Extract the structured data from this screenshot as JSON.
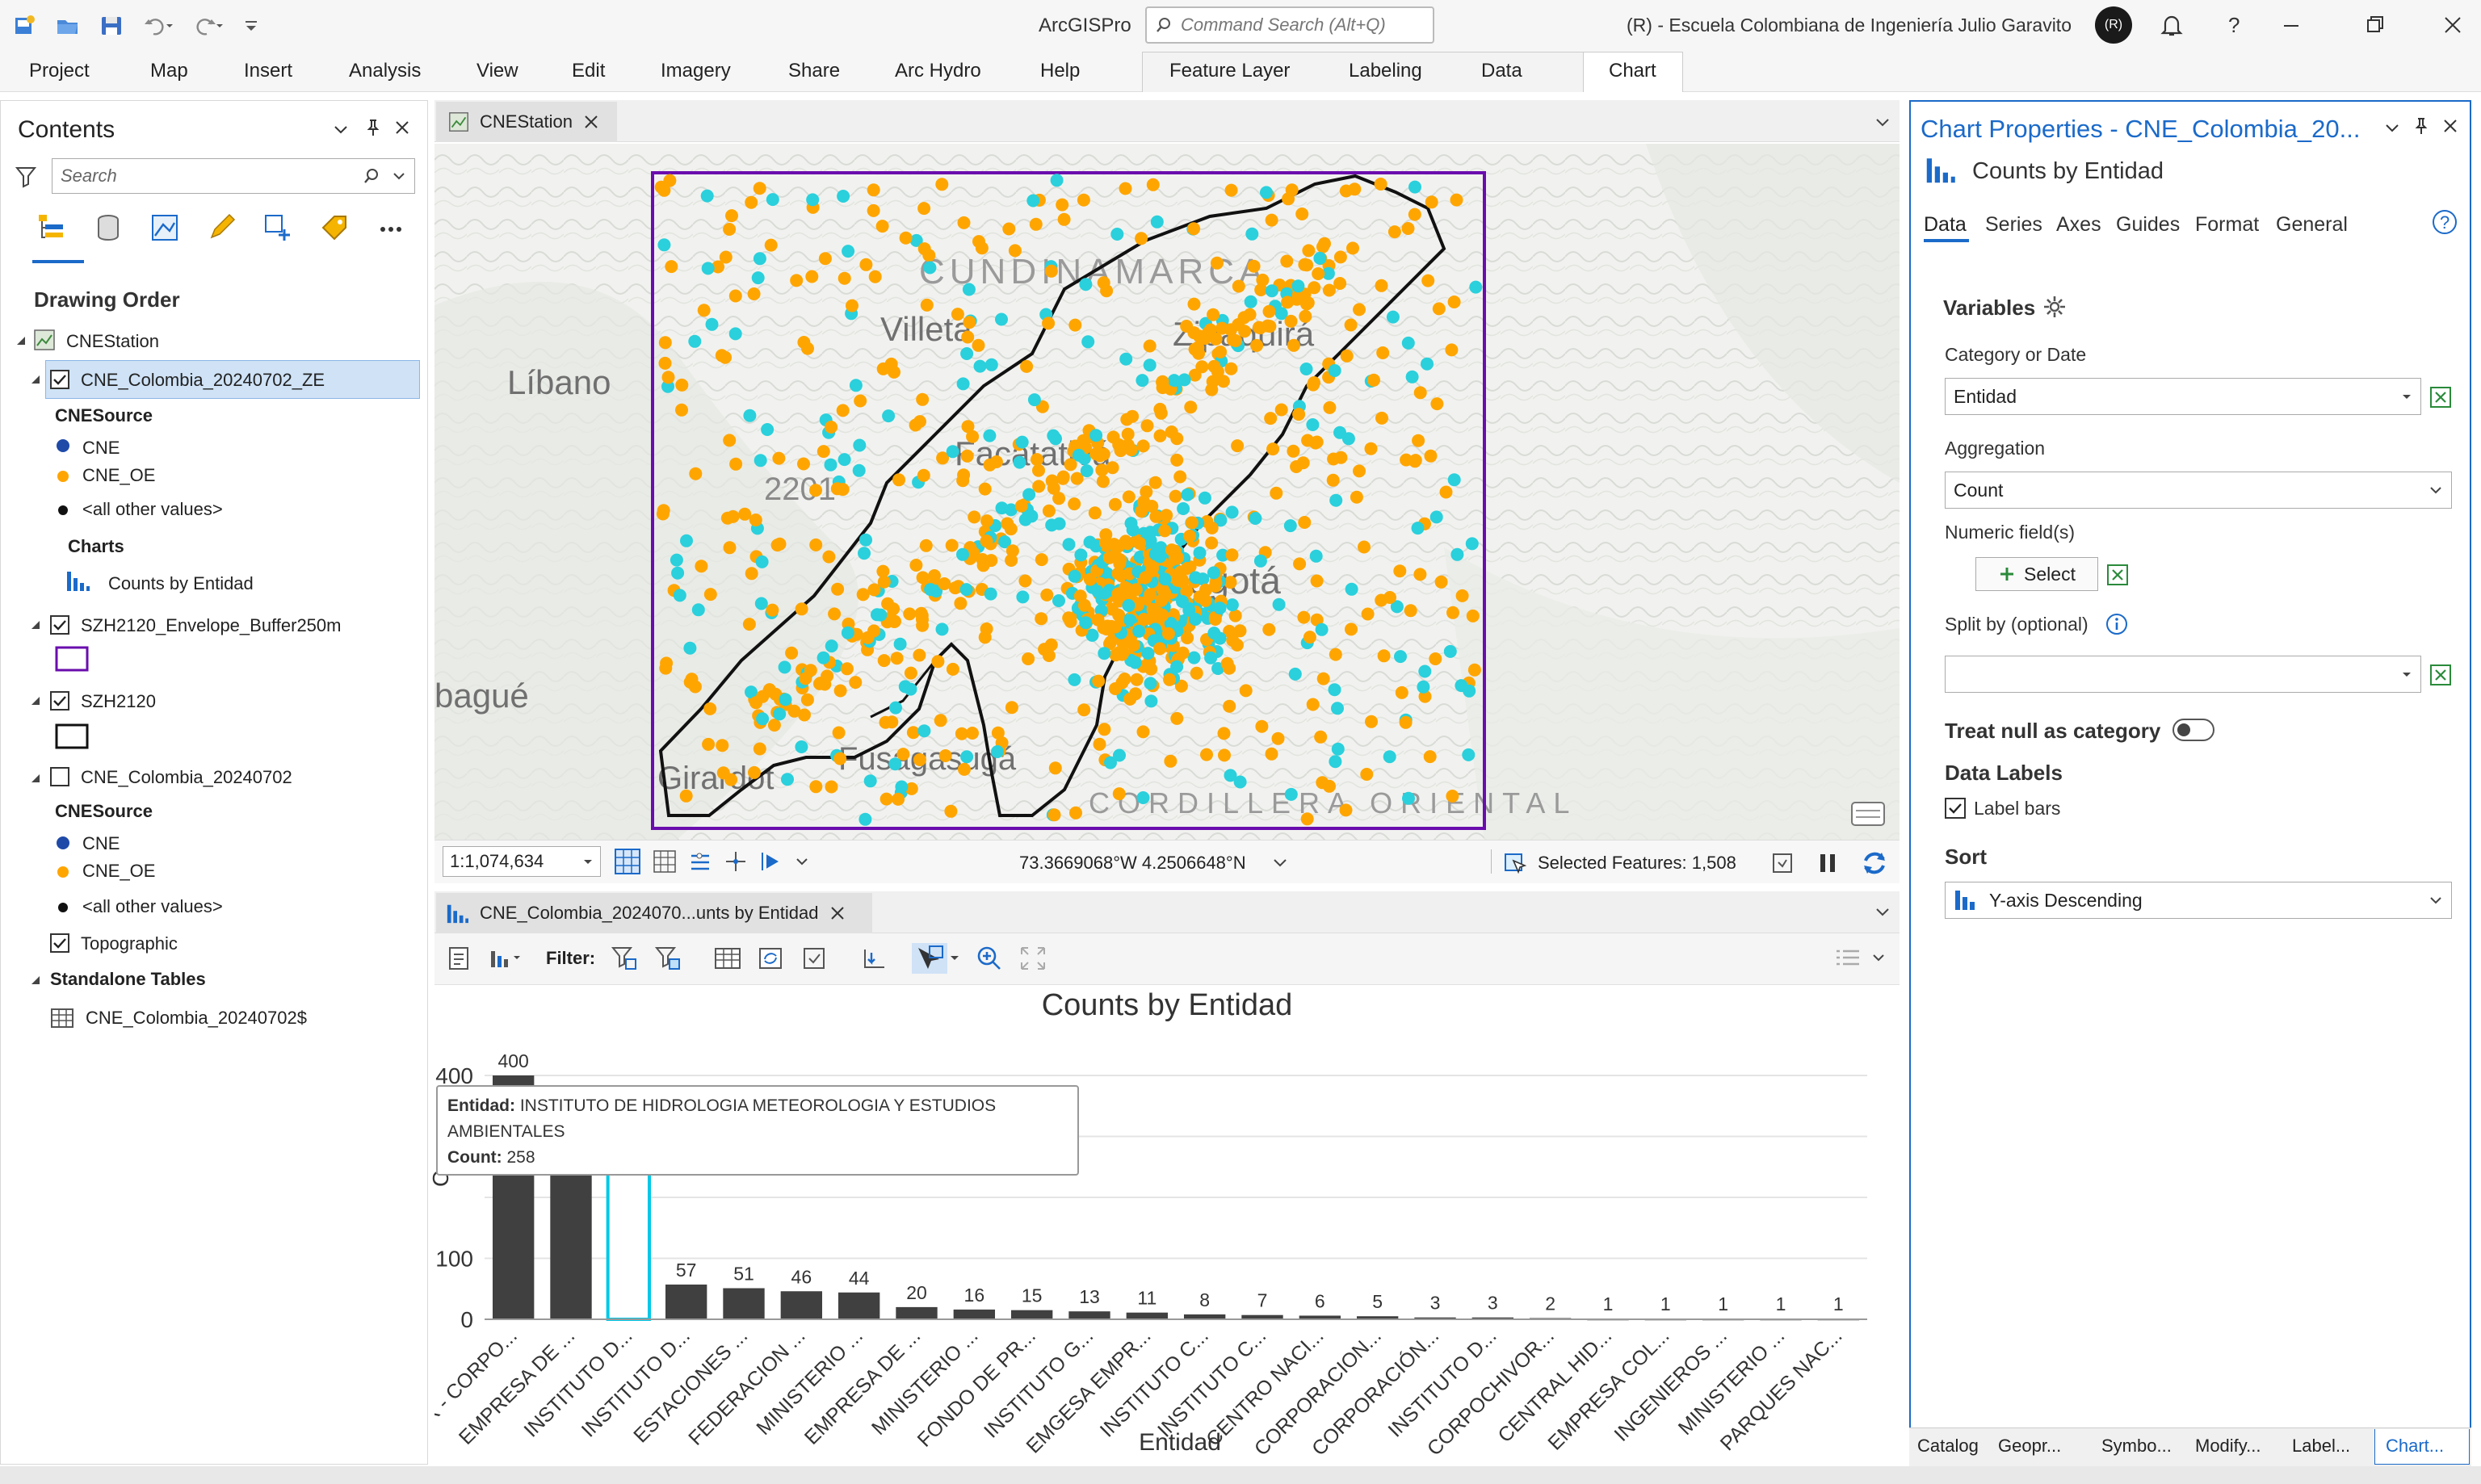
{
  "app": {
    "title": "ArcGISPro",
    "command_search_placeholder": "Command Search (Alt+Q)",
    "user_org": "(R) - Escuela Colombiana de Ingeniería Julio Garavito",
    "user_initials": "(R)"
  },
  "ribbon_tabs": [
    "Project",
    "Map",
    "Insert",
    "Analysis",
    "View",
    "Edit",
    "Imagery",
    "Share",
    "Arc Hydro",
    "Help"
  ],
  "context_tabs": [
    "Feature Layer",
    "Labeling",
    "Data"
  ],
  "chart_tab": "Chart",
  "contents": {
    "title": "Contents",
    "search_placeholder": "Search",
    "drawing_order": "Drawing Order",
    "map_name": "CNEStation",
    "layer1": "CNE_Colombia_20240702_ZE",
    "cnesource": "CNESource",
    "cne": "CNE",
    "cne_oe": "CNE_OE",
    "other": "<all other values>",
    "charts": "Charts",
    "chart_item": "Counts by Entidad",
    "layer2": "SZH2120_Envelope_Buffer250m",
    "layer3": "SZH2120",
    "layer4": "CNE_Colombia_20240702",
    "topographic": "Topographic",
    "standalone": "Standalone Tables",
    "table_item": "CNE_Colombia_20240702$"
  },
  "map": {
    "tab": "CNEStation",
    "scale": "1:1,074,634",
    "coords": "73.3669068°W 4.2506648°N",
    "selected": "Selected Features: 1,508",
    "labels": [
      "CUNDINAMARCA",
      "Villeta",
      "Zipaquirá",
      "Líbano",
      "Facatativá",
      "2201",
      "Bogotá",
      "bagué",
      "Girardot",
      "Fusagasugá",
      "CORDILLERA ORIENTAL"
    ]
  },
  "chart_view": {
    "tab": "CNE_Colombia_2024070...unts by Entidad",
    "filter_label": "Filter:",
    "tooltip_key1": "Entidad:",
    "tooltip_val1": "INSTITUTO DE HIDROLOGIA METEOROLOGIA Y ESTUDIOS AMBIENTALES",
    "tooltip_key2": "Count:",
    "tooltip_val2": "258"
  },
  "chart_data": {
    "type": "bar",
    "title": "Counts by Entidad",
    "xlabel": "Entidad",
    "ylabel": "Co",
    "ylim": [
      0,
      400
    ],
    "yticks": [
      "0",
      "100",
      "400"
    ],
    "categories": [
      "CAR - CORPO...",
      "EMPRESA DE ...",
      "INSTITUTO D...",
      "INSTITUTO D...",
      "ESTACIONES ...",
      "FEDERACION ...",
      "MINISTERIO ...",
      "EMPRESA DE ...",
      "MINISTERIO ...",
      "FONDO DE PR...",
      "INSTITUTO G...",
      "EMGESA EMPR...",
      "INSTITUTO C...",
      "INSTITUTO C...",
      "CENTRO NACI...",
      "CORPORACION...",
      "CORPORACIÓN...",
      "INSTITUTO D...",
      "CORPOCHIVOR...",
      "CENTRAL HID...",
      "EMPRESA COL...",
      "INGENIEROS ...",
      "MINISTERIO ...",
      "PARQUES NAC..."
    ],
    "values": [
      400,
      280,
      258,
      57,
      51,
      46,
      44,
      20,
      16,
      15,
      13,
      11,
      8,
      7,
      6,
      5,
      3,
      3,
      2,
      1,
      1,
      1,
      1,
      1
    ],
    "value_labels": [
      "400",
      "",
      "",
      "57",
      "51",
      "46",
      "44",
      "20",
      "16",
      "15",
      "13",
      "11",
      "8",
      "7",
      "6",
      "5",
      "3",
      "3",
      "2",
      "1",
      "1",
      "1",
      "1",
      "1"
    ],
    "highlight_index": 2,
    "bar_color": "#404040",
    "highlight_color": "#00c8e6"
  },
  "props": {
    "title": "Chart Properties - CNE_Colombia_20...",
    "chart_name": "Counts by Entidad",
    "tabs": [
      "Data",
      "Series",
      "Axes",
      "Guides",
      "Format",
      "General"
    ],
    "variables": "Variables",
    "category_label": "Category or Date",
    "category_value": "Entidad",
    "aggregation_label": "Aggregation",
    "aggregation_value": "Count",
    "numeric_label": "Numeric field(s)",
    "select_button": "Select",
    "split_label": "Split by (optional)",
    "treat_null": "Treat null as category",
    "data_labels": "Data Labels",
    "label_bars": "Label bars",
    "sort": "Sort",
    "sort_value": "Y-axis Descending"
  },
  "bottom_tabs": [
    "Catalog",
    "Geopr...",
    "Symbo...",
    "Modify...",
    "Label...",
    "Chart..."
  ],
  "colors": {
    "cne": "#1f4aa8",
    "cne_oe": "#ffa500",
    "cyan": "#2ad0dc",
    "accent": "#1b6ac9",
    "envelope": "#6a0dad"
  }
}
